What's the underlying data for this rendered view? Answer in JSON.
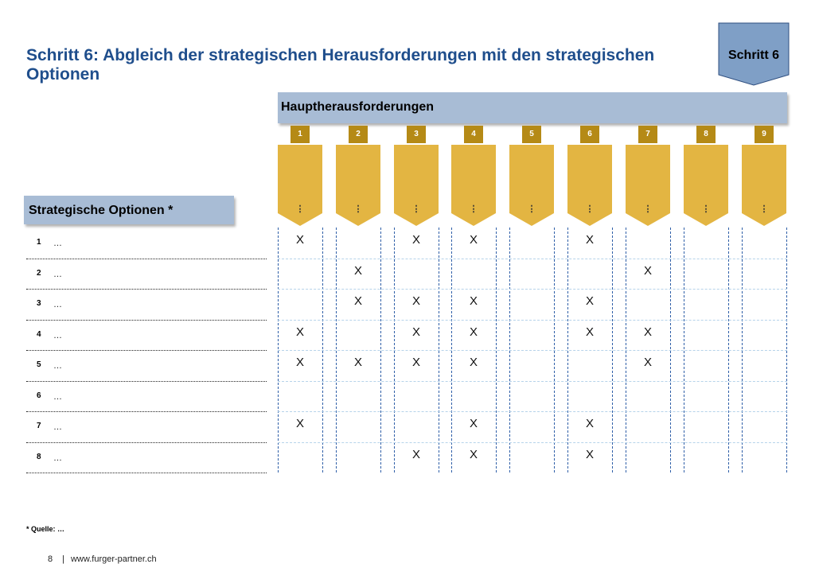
{
  "title": "Schritt 6: Abgleich der strategischen Herausforderungen mit den strategischen Optionen",
  "step_badge": "Schritt 6",
  "challenges_header": "Hauptherausforderungen",
  "options_header": "Strategische Optionen *",
  "columns": [
    {
      "number": "1",
      "label": "⋮"
    },
    {
      "number": "2",
      "label": "⋮"
    },
    {
      "number": "3",
      "label": "⋮"
    },
    {
      "number": "4",
      "label": "⋮"
    },
    {
      "number": "5",
      "label": "⋮"
    },
    {
      "number": "6",
      "label": "⋮"
    },
    {
      "number": "7",
      "label": "⋮"
    },
    {
      "number": "8",
      "label": "⋮"
    },
    {
      "number": "9",
      "label": "⋮"
    }
  ],
  "rows": [
    {
      "number": "1",
      "label": "…",
      "marks": [
        "X",
        "",
        "X",
        "X",
        "",
        "X",
        "",
        "",
        ""
      ]
    },
    {
      "number": "2",
      "label": "…",
      "marks": [
        "",
        "X",
        "",
        "",
        "",
        "",
        "X",
        "",
        ""
      ]
    },
    {
      "number": "3",
      "label": "…",
      "marks": [
        "",
        "X",
        "X",
        "X",
        "",
        "X",
        "",
        "",
        ""
      ]
    },
    {
      "number": "4",
      "label": "…",
      "marks": [
        "X",
        "",
        "X",
        "X",
        "",
        "X",
        "X",
        "",
        ""
      ]
    },
    {
      "number": "5",
      "label": "…",
      "marks": [
        "X",
        "X",
        "X",
        "X",
        "",
        "",
        "X",
        "",
        ""
      ]
    },
    {
      "number": "6",
      "label": "…",
      "marks": [
        "",
        "",
        "",
        "",
        "",
        "",
        "",
        "",
        ""
      ]
    },
    {
      "number": "7",
      "label": "…",
      "marks": [
        "X",
        "",
        "",
        "X",
        "",
        "X",
        "",
        "",
        ""
      ]
    },
    {
      "number": "8",
      "label": "…",
      "marks": [
        "",
        "",
        "X",
        "X",
        "",
        "X",
        "",
        "",
        ""
      ]
    }
  ],
  "footnote": {
    "label": "* Quelle:",
    "value": "…"
  },
  "footer": {
    "page": "8",
    "separator": "|",
    "url": "www.furger-partner.ch"
  },
  "colors": {
    "title": "#1f4e8c",
    "header_bar": "#a8bcd5",
    "arrow": "#e3b542",
    "number_tab": "#b58a16",
    "badge": "#7f9fc6",
    "column_border": "#2f5fa8",
    "row_divider": "#b6d3ea"
  }
}
